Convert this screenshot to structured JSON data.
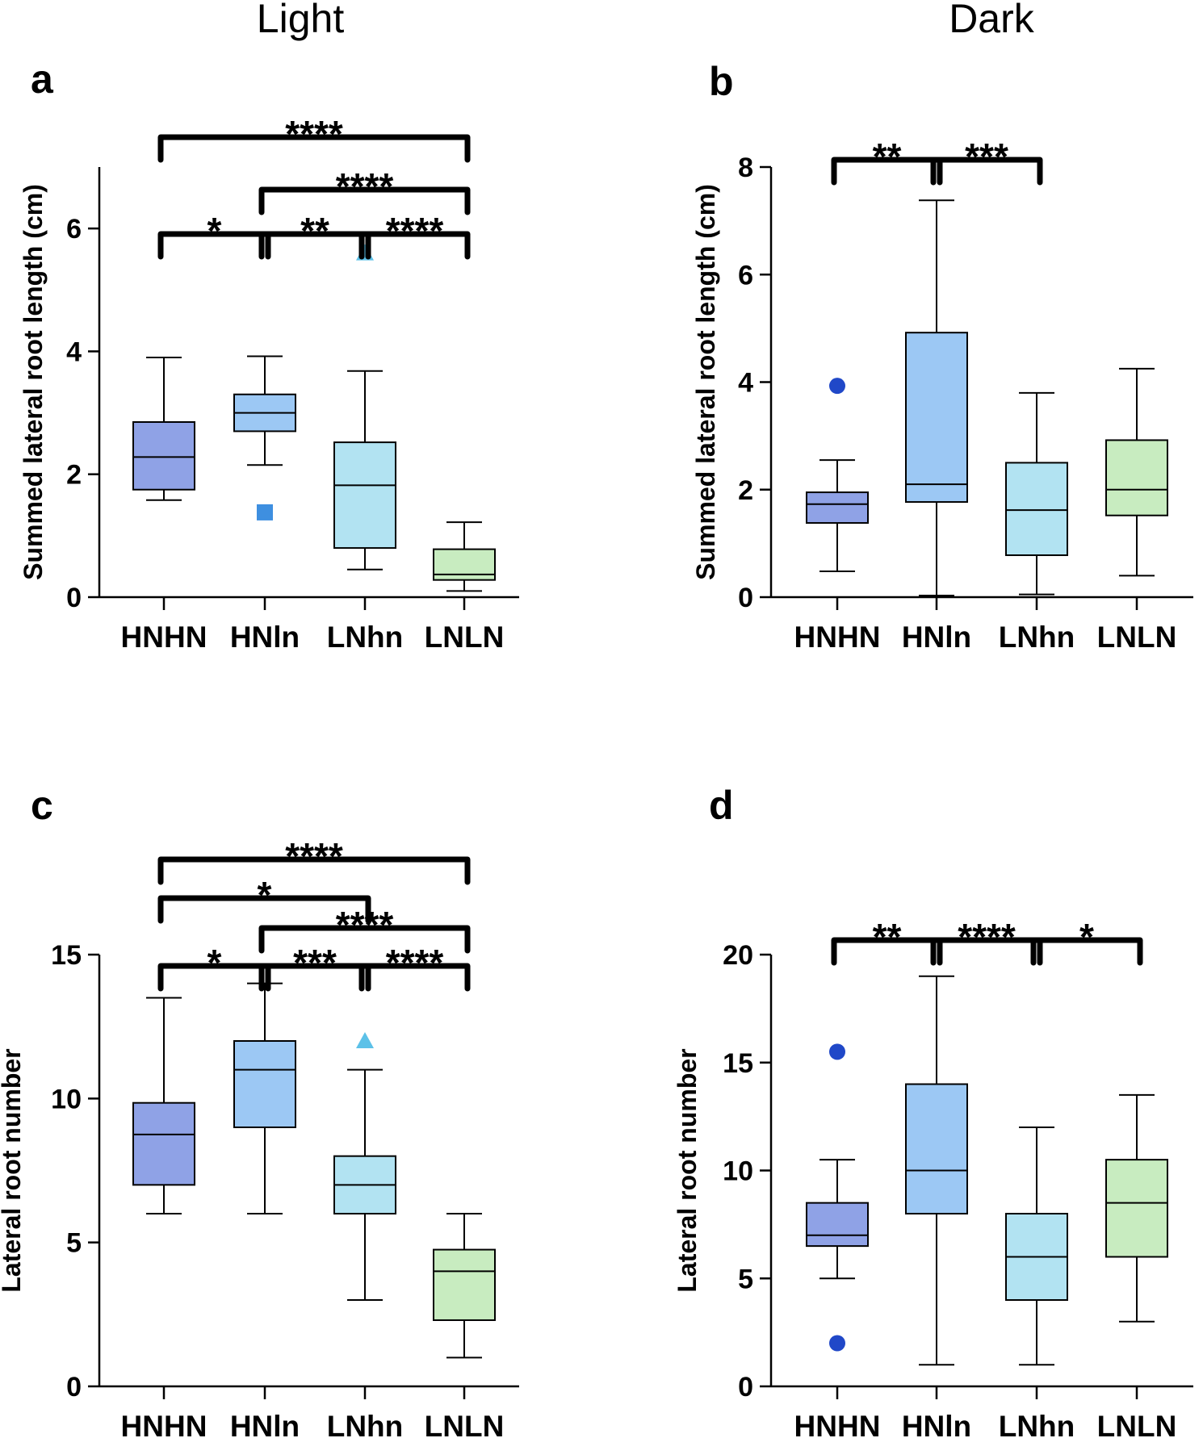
{
  "column_titles": [
    "Light",
    "Dark"
  ],
  "chart_data": [
    {
      "panel": "a",
      "type": "box",
      "ylabel": "Summed lateral root length (cm)",
      "ylim": [
        0,
        7
      ],
      "yticks": [
        0,
        2,
        4,
        6
      ],
      "categories": [
        "HNHN",
        "HNln",
        "LNhn",
        "LNLN"
      ],
      "colors": [
        "#8fa2e6",
        "#9cc8f4",
        "#b2e3f2",
        "#c8ecc0"
      ],
      "boxes": [
        {
          "min": 1.58,
          "q1": 1.75,
          "median": 2.28,
          "q3": 2.85,
          "max": 3.9
        },
        {
          "min": 2.15,
          "q1": 2.7,
          "median": 3.0,
          "q3": 3.3,
          "max": 3.92
        },
        {
          "min": 0.45,
          "q1": 0.8,
          "median": 1.82,
          "q3": 2.52,
          "max": 3.68
        },
        {
          "min": 0.1,
          "q1": 0.28,
          "median": 0.37,
          "q3": 0.78,
          "max": 1.22
        }
      ],
      "outliers": [
        {
          "category": 1,
          "value": 1.38,
          "shape": "square",
          "color": "#3e8fe0"
        },
        {
          "category": 2,
          "value": 5.6,
          "shape": "triangle",
          "color": "#5cc1e8"
        }
      ],
      "significance": [
        {
          "from": 0,
          "to": 1,
          "label": "*"
        },
        {
          "from": 1,
          "to": 2,
          "label": "**"
        },
        {
          "from": 2,
          "to": 3,
          "label": "****"
        },
        {
          "from": 1,
          "to": 3,
          "label": "****"
        },
        {
          "from": 0,
          "to": 3,
          "label": "****"
        }
      ]
    },
    {
      "panel": "b",
      "type": "box",
      "ylabel": "Summed lateral root length (cm)",
      "ylim": [
        0,
        8
      ],
      "yticks": [
        0,
        2,
        4,
        6,
        8
      ],
      "categories": [
        "HNHN",
        "HNln",
        "LNhn",
        "LNLN"
      ],
      "colors": [
        "#8fa2e6",
        "#9cc8f4",
        "#b2e3f2",
        "#c8ecc0"
      ],
      "boxes": [
        {
          "min": 0.48,
          "q1": 1.38,
          "median": 1.73,
          "q3": 1.95,
          "max": 2.55
        },
        {
          "min": 0.03,
          "q1": 1.77,
          "median": 2.1,
          "q3": 4.92,
          "max": 7.38
        },
        {
          "min": 0.05,
          "q1": 0.78,
          "median": 1.62,
          "q3": 2.5,
          "max": 3.8
        },
        {
          "min": 0.4,
          "q1": 1.52,
          "median": 2.0,
          "q3": 2.92,
          "max": 4.25
        }
      ],
      "outliers": [
        {
          "category": 0,
          "value": 3.93,
          "shape": "circle",
          "color": "#2048c8"
        }
      ],
      "significance": [
        {
          "from": 0,
          "to": 1,
          "label": "**"
        },
        {
          "from": 1,
          "to": 2,
          "label": "***"
        }
      ]
    },
    {
      "panel": "c",
      "type": "box",
      "ylabel": "Lateral root number",
      "ylim": [
        0,
        15
      ],
      "yticks": [
        0,
        5,
        10,
        15
      ],
      "categories": [
        "HNHN",
        "HNln",
        "LNhn",
        "LNLN"
      ],
      "colors": [
        "#8fa2e6",
        "#9cc8f4",
        "#b2e3f2",
        "#c8ecc0"
      ],
      "boxes": [
        {
          "min": 6.0,
          "q1": 7.0,
          "median": 8.75,
          "q3": 9.85,
          "max": 13.5
        },
        {
          "min": 6.0,
          "q1": 9.0,
          "median": 11.0,
          "q3": 12.0,
          "max": 14.0
        },
        {
          "min": 3.0,
          "q1": 6.0,
          "median": 7.0,
          "q3": 8.0,
          "max": 11.0
        },
        {
          "min": 1.0,
          "q1": 2.3,
          "median": 4.0,
          "q3": 4.75,
          "max": 6.0
        }
      ],
      "outliers": [
        {
          "category": 2,
          "value": 12.0,
          "shape": "triangle",
          "color": "#5cc1e8"
        }
      ],
      "significance": [
        {
          "from": 0,
          "to": 1,
          "label": "*"
        },
        {
          "from": 1,
          "to": 2,
          "label": "***"
        },
        {
          "from": 2,
          "to": 3,
          "label": "****"
        },
        {
          "from": 1,
          "to": 3,
          "label": "****"
        },
        {
          "from": 0,
          "to": 2,
          "label": "*"
        },
        {
          "from": 0,
          "to": 3,
          "label": "****"
        }
      ]
    },
    {
      "panel": "d",
      "type": "box",
      "ylabel": "Lateral root number",
      "ylim": [
        0,
        20
      ],
      "yticks": [
        0,
        5,
        10,
        15,
        20
      ],
      "categories": [
        "HNHN",
        "HNln",
        "LNhn",
        "LNLN"
      ],
      "colors": [
        "#8fa2e6",
        "#9cc8f4",
        "#b2e3f2",
        "#c8ecc0"
      ],
      "boxes": [
        {
          "min": 5.0,
          "q1": 6.5,
          "median": 7.0,
          "q3": 8.5,
          "max": 10.5
        },
        {
          "min": 1.0,
          "q1": 8.0,
          "median": 10.0,
          "q3": 14.0,
          "max": 19.0
        },
        {
          "min": 1.0,
          "q1": 4.0,
          "median": 6.0,
          "q3": 8.0,
          "max": 12.0
        },
        {
          "min": 3.0,
          "q1": 6.0,
          "median": 8.5,
          "q3": 10.5,
          "max": 13.5
        }
      ],
      "outliers": [
        {
          "category": 0,
          "value": 15.5,
          "shape": "circle",
          "color": "#2048c8"
        },
        {
          "category": 0,
          "value": 2.0,
          "shape": "circle",
          "color": "#2048c8"
        }
      ],
      "significance": [
        {
          "from": 0,
          "to": 1,
          "label": "**"
        },
        {
          "from": 1,
          "to": 2,
          "label": "****"
        },
        {
          "from": 2,
          "to": 3,
          "label": "*"
        }
      ]
    }
  ]
}
